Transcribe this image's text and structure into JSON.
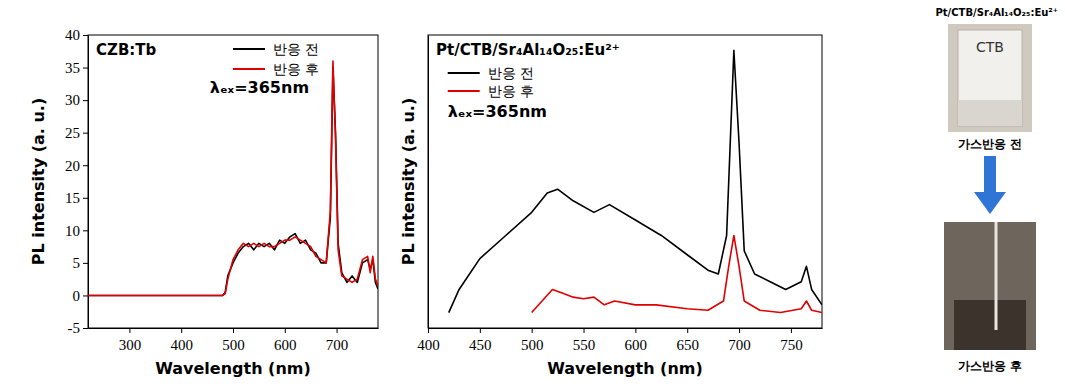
{
  "chart_data": [
    {
      "type": "line",
      "annotations": [
        "CZB:Tb",
        "λₑₓ=365nm"
      ],
      "x_label": "Wavelength (nm)",
      "y_label": "PL intensity (a. u.)",
      "xlim": [
        220,
        780
      ],
      "xticks": [
        300,
        400,
        500,
        600,
        700
      ],
      "ylim": [
        -5,
        40
      ],
      "yticks": [
        -5,
        0,
        5,
        10,
        15,
        20,
        25,
        30,
        35,
        40
      ],
      "legend": "upper right",
      "series": [
        {
          "name": "반응 전",
          "color": "#000000",
          "x": [
            220,
            300,
            400,
            480,
            485,
            490,
            500,
            510,
            520,
            530,
            540,
            550,
            560,
            570,
            580,
            590,
            600,
            610,
            620,
            630,
            640,
            650,
            660,
            670,
            680,
            688,
            693,
            698,
            703,
            710,
            720,
            730,
            740,
            750,
            760,
            765,
            770,
            775,
            780
          ],
          "values": [
            0,
            0,
            0,
            0,
            0.5,
            3,
            5,
            6.5,
            7.5,
            8,
            7,
            8,
            7.5,
            8,
            7,
            8.5,
            8,
            9,
            9.5,
            8,
            8.5,
            7,
            6.5,
            5,
            5,
            12,
            35,
            25,
            8,
            3.5,
            2,
            3,
            2,
            5,
            5.5,
            4,
            5.5,
            2,
            1
          ]
        },
        {
          "name": "반응 후",
          "color": "#e00000",
          "x": [
            220,
            300,
            400,
            480,
            485,
            490,
            500,
            510,
            520,
            530,
            540,
            550,
            560,
            570,
            580,
            590,
            600,
            610,
            620,
            630,
            640,
            650,
            660,
            670,
            680,
            688,
            693,
            698,
            703,
            710,
            720,
            730,
            740,
            750,
            760,
            765,
            770,
            775,
            780
          ],
          "values": [
            0,
            0,
            0,
            0,
            0.3,
            2.5,
            5.5,
            7,
            8,
            7.5,
            8,
            7.5,
            8,
            7.5,
            7.5,
            8,
            8.5,
            8.5,
            9,
            8.5,
            8,
            7.5,
            6,
            5.5,
            5,
            13,
            36,
            24,
            7,
            3,
            2.5,
            2,
            2.5,
            5.5,
            6,
            3.5,
            6,
            2.5,
            1.5
          ]
        }
      ]
    },
    {
      "type": "line",
      "annotations": [
        "Pt/CTB/Sr₄Al₁₄O₂₅:Eu²⁺",
        "λₑₓ=365nm"
      ],
      "x_label": "Wavelength (nm)",
      "y_label": "PL intensity (a. u.)",
      "xlim": [
        400,
        780
      ],
      "xticks": [
        400,
        450,
        500,
        550,
        600,
        650,
        700,
        750
      ],
      "ylim": [
        -2,
        36
      ],
      "yticks": [],
      "tick_labels": "x",
      "legend": "upper left",
      "series": [
        {
          "name": "반응 전",
          "color": "#000000",
          "x": [
            420,
            430,
            450,
            475,
            500,
            515,
            525,
            540,
            560,
            575,
            600,
            625,
            650,
            670,
            680,
            688,
            695,
            700,
            705,
            715,
            730,
            745,
            760,
            765,
            770,
            780
          ],
          "values": [
            0,
            3,
            7,
            10,
            13,
            15.5,
            16,
            14.5,
            13,
            14,
            12,
            10,
            7.5,
            5.5,
            5,
            10,
            34,
            22,
            8,
            5,
            4,
            3,
            4,
            6,
            3,
            1
          ]
        },
        {
          "name": "반응 후",
          "color": "#e00000",
          "x": [
            500,
            510,
            520,
            530,
            540,
            550,
            560,
            570,
            580,
            600,
            620,
            650,
            670,
            685,
            690,
            695,
            700,
            705,
            720,
            740,
            760,
            765,
            770,
            780
          ],
          "values": [
            0,
            1.5,
            3,
            2.5,
            2,
            1.8,
            2,
            1,
            1.5,
            1,
            1,
            0.5,
            0.3,
            1.5,
            6,
            10,
            6,
            1.5,
            0.3,
            0,
            0.5,
            1.5,
            0.3,
            0
          ]
        }
      ]
    }
  ],
  "photos": {
    "title": "Pt/CTB/Sr₄Al₁₄O₂₅:Eu²⁺",
    "bottle_label": "CTB",
    "captions": [
      "가스반응 전",
      "가스반응 후"
    ]
  }
}
